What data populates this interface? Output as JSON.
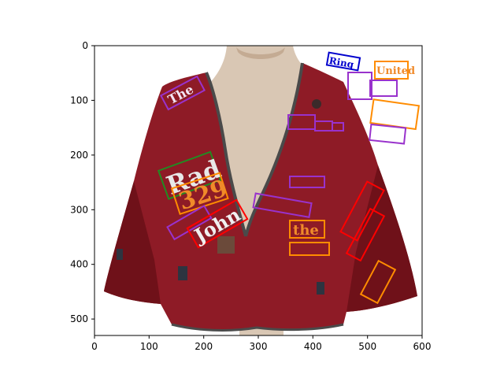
{
  "image": {
    "description_free": true,
    "x_axis": {
      "ticks": [
        "0",
        "100",
        "200",
        "300",
        "400",
        "500",
        "600"
      ],
      "lim": [
        0,
        600
      ]
    },
    "y_axis": {
      "ticks": [
        "0",
        "100",
        "200",
        "300",
        "400",
        "500"
      ],
      "lim": [
        530,
        0
      ],
      "inverted": true
    },
    "colors": {
      "garment": "#8e1b26",
      "garment_dark": "#6f1119",
      "mannequin": "#d9c7b4",
      "mannequin_shadow": "#c4ab93",
      "trim": "#4a4a4a",
      "purple": "#9932cc",
      "orange": "#ff8c00",
      "red": "#ff0000",
      "green": "#228b22",
      "blue": "#0000cd"
    },
    "words": [
      {
        "text": "The",
        "color_key": "purple"
      },
      {
        "text": "Rad",
        "color_key": "green"
      },
      {
        "text": "329",
        "color_key": "orange"
      },
      {
        "text": "John",
        "color_key": "red"
      },
      {
        "text": "the",
        "color_key": "orange"
      },
      {
        "text": "United",
        "color_key": "orange"
      },
      {
        "text": "Ring",
        "color_key": "blue"
      }
    ]
  }
}
